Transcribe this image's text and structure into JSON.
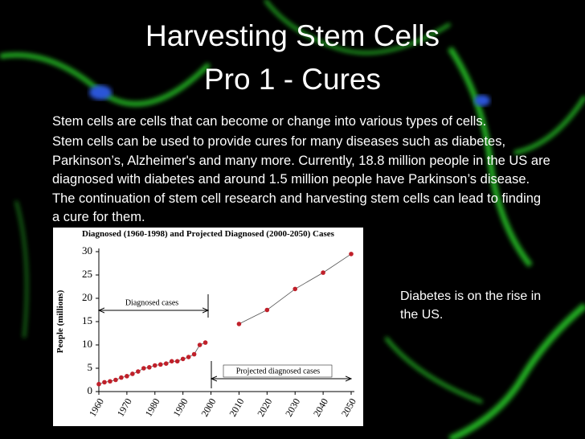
{
  "slide": {
    "title": [
      "Harvesting Stem Cells",
      "Pro 1 - Cures"
    ],
    "paragraphs": [
      "Stem cells are cells that can become or change into various types of cells.",
      "Stem cells can be used to provide cures for many diseases such as diabetes, Parkinson’s, Alzheimer's and many more. Currently, 18.8 million people in the US are diagnosed with diabetes and around 1.5 million people have Parkinson’s disease. The continuation of stem cell research and harvesting stem cells can lead to finding a cure for them."
    ],
    "caption": "Diabetes is on the rise in the US."
  },
  "chart_data": {
    "type": "scatter",
    "title": "Diagnosed (1960-1998) and Projected Diagnosed (2000-2050) Cases",
    "y_label": "People (millions)",
    "annotations": [
      "Diagnosed cases",
      "Projected diagnosed cases"
    ],
    "xlim": [
      1960,
      2050
    ],
    "xticks": [
      1960,
      1970,
      1980,
      1990,
      2000,
      2010,
      2020,
      2030,
      2040,
      2050
    ],
    "ylim": [
      0,
      30
    ],
    "yticks": [
      0,
      5,
      10,
      15,
      20,
      25,
      30
    ],
    "series": [
      {
        "color": "#c0202a",
        "x": [
          1960,
          1962,
          1964,
          1966,
          1968,
          1970,
          1972,
          1974,
          1976,
          1978,
          1980,
          1982,
          1984,
          1986,
          1988,
          1990,
          1992,
          1994,
          1996,
          1998
        ],
        "values": [
          1.6,
          2,
          2.2,
          2.5,
          3,
          3.3,
          3.8,
          4.3,
          5,
          5.2,
          5.6,
          5.8,
          6,
          6.5,
          6.5,
          7,
          7.4,
          8,
          10,
          10.5
        ]
      },
      {
        "color": "#c0202a",
        "x": [
          2010,
          2020,
          2030,
          2040,
          2050
        ],
        "values": [
          14.5,
          17.5,
          22,
          25.5,
          29.5
        ]
      }
    ]
  }
}
